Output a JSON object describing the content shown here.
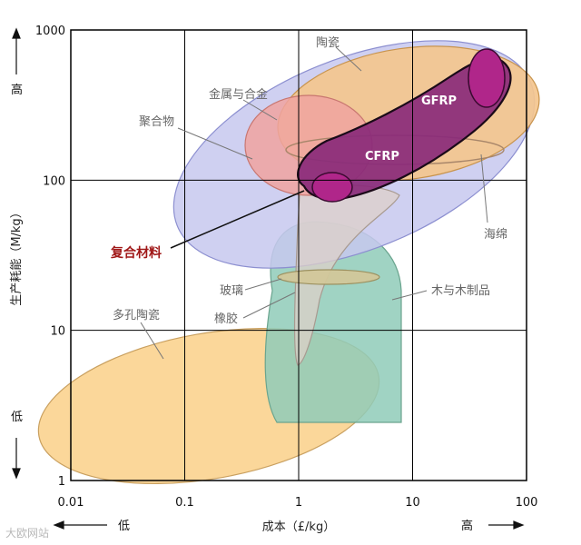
{
  "chart_data": {
    "type": "scatter",
    "subtype": "material-property-bubble-chart",
    "x_scale": "log",
    "y_scale": "log",
    "xlim": [
      0.01,
      100
    ],
    "ylim": [
      1,
      1000
    ],
    "grid": true,
    "xlabel": "成本（£/kg）",
    "ylabel": "生产耗能（M/kg）",
    "x_ticks": [
      "0.01",
      "0.1",
      "1",
      "10",
      "100"
    ],
    "y_ticks": [
      "1",
      "10",
      "100",
      "1000"
    ],
    "x_low_label": "低",
    "x_high_label": "高",
    "y_low_label": "低",
    "y_high_label": "高",
    "regions": [
      {
        "name": "多孔陶瓷",
        "x_range": [
          0.01,
          8
        ],
        "y_range": [
          1,
          10
        ]
      },
      {
        "name": "木与木制品",
        "x_range": [
          0.8,
          10
        ],
        "y_range": [
          2.5,
          50
        ]
      },
      {
        "name": "橡胶",
        "x_range": [
          0.9,
          3.5
        ],
        "y_range": [
          6,
          120
        ]
      },
      {
        "name": "玻璃",
        "x_range": [
          0.9,
          7
        ],
        "y_range": [
          22,
          26
        ]
      },
      {
        "name": "陶瓷",
        "x_range": [
          0.9,
          100
        ],
        "y_range": [
          70,
          900
        ]
      },
      {
        "name": "金属与合金",
        "x_range": [
          0.1,
          100
        ],
        "y_range": [
          20,
          1000
        ]
      },
      {
        "name": "聚合物",
        "x_range": [
          0.5,
          5
        ],
        "y_range": [
          80,
          400
        ]
      },
      {
        "name": "海绵",
        "x_range": [
          1,
          20
        ],
        "y_range": [
          120,
          160
        ]
      },
      {
        "name": "复合材料",
        "x_range": [
          1,
          80
        ],
        "y_range": [
          80,
          700
        ]
      },
      {
        "name": "CFRP",
        "x_range": [
          1.5,
          3.5
        ],
        "y_range": [
          75,
          125
        ]
      },
      {
        "name": "GFRP",
        "x_range": [
          30,
          70
        ],
        "y_range": [
          260,
          900
        ]
      }
    ]
  },
  "labels": {
    "ceramics": "陶瓷",
    "metals": "金属与合金",
    "polymers": "聚合物",
    "gfrp": "GFRP",
    "cfrp": "CFRP",
    "foams": "海绵",
    "composites": "复合材料",
    "glass": "玻璃",
    "wood": "木与木制品",
    "rubber": "橡胶",
    "porous_ceramics": "多孔陶瓷"
  },
  "colors": {
    "metals": "#c7c8ef",
    "ceramics": "#f4c58e",
    "polymers": "#f0a3a0",
    "composites": "#8a2a7a",
    "cfrp_gfrp": "#b0268a",
    "wood": "#8fcbb8",
    "rubber": "#ddd0c8",
    "glass": "#d2c79a",
    "porous_ceramics": "#fbd595",
    "composites_label": "#a01818",
    "grid": "#000000"
  },
  "watermark": "大欧网站"
}
